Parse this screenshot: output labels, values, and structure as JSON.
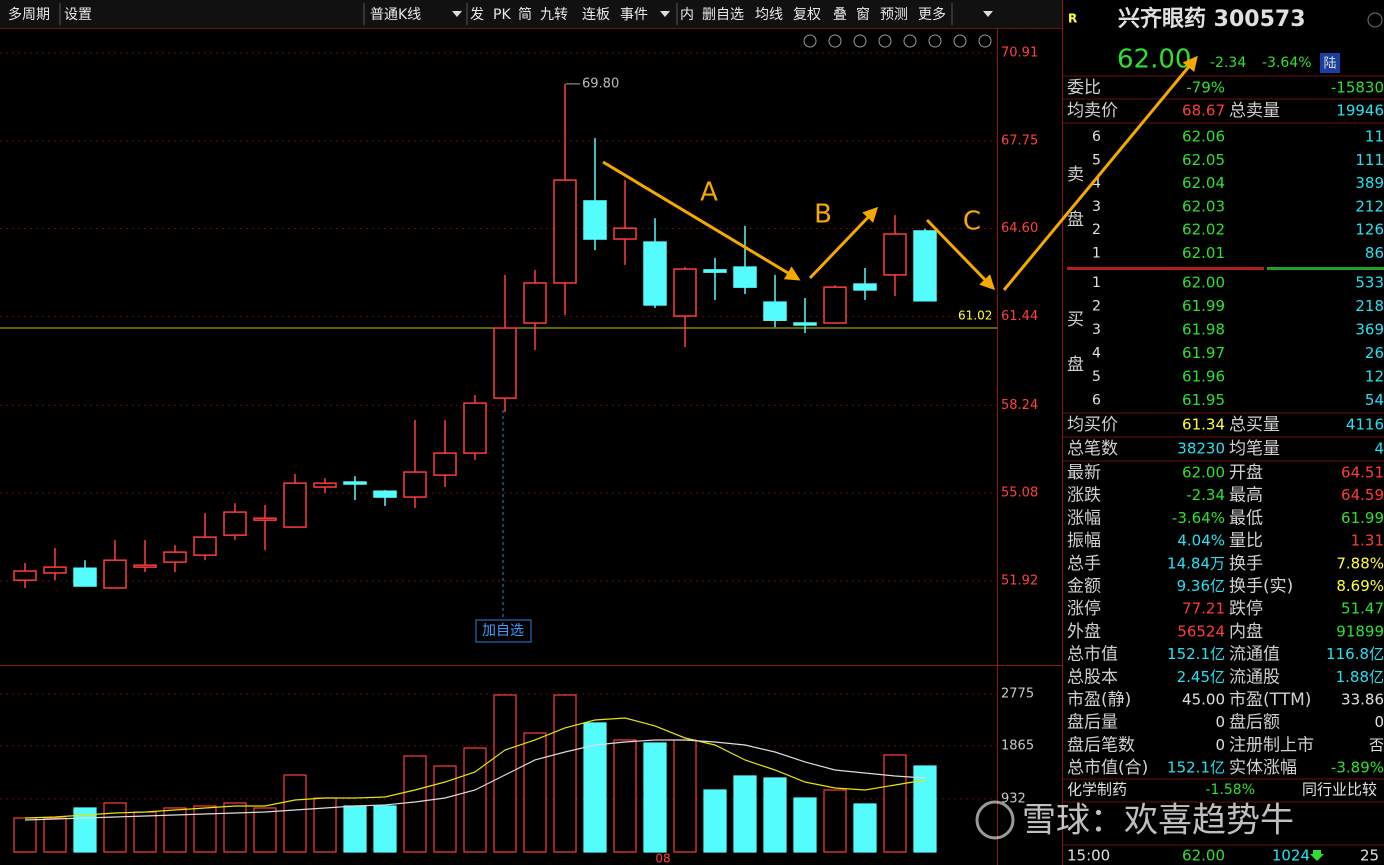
{
  "toolbar": [
    "多周期",
    "设置",
    "普通K线",
    "发",
    "PK",
    "简",
    "九转",
    "连板",
    "事件",
    "内",
    "删自选",
    "均线",
    "复权",
    "叠",
    "窗",
    "预测",
    "更多"
  ],
  "chart_data": {
    "type": "candlestick",
    "up_color": "#ff3c3c",
    "down_color": "#54fcfc",
    "open": [
      51.95,
      52.21,
      52.38,
      51.67,
      52.42,
      52.6,
      52.85,
      53.57,
      54.11,
      53.86,
      55.3,
      55.48,
      55.15,
      54.94,
      55.73,
      56.52,
      58.5,
      61.2,
      62.64,
      65.59,
      64.22,
      64.11,
      61.45,
      63.11,
      63.21,
      61.95,
      61.2,
      61.2,
      62.6,
      62.93,
      64.51
    ],
    "high": [
      52.57,
      53.11,
      52.67,
      53.39,
      53.39,
      53.21,
      54.36,
      54.72,
      54.65,
      55.77,
      55.62,
      55.69,
      55.19,
      57.71,
      57.71,
      58.61,
      62.93,
      63.11,
      69.8,
      67.85,
      66.34,
      64.97,
      63.21,
      63.54,
      64.69,
      62.93,
      62.1,
      62.56,
      63.18,
      65.08,
      64.59
    ],
    "low": [
      51.67,
      51.95,
      51.74,
      51.67,
      52.24,
      52.24,
      52.67,
      53.39,
      53.03,
      53.86,
      55.08,
      54.83,
      54.62,
      54.55,
      55.3,
      56.27,
      58.0,
      60.23,
      61.49,
      63.82,
      63.29,
      61.74,
      60.33,
      62.03,
      62.24,
      61.05,
      60.84,
      61.2,
      62.03,
      62.17,
      61.99
    ],
    "close": [
      52.28,
      52.42,
      51.74,
      52.67,
      52.49,
      52.96,
      53.5,
      54.4,
      54.18,
      55.44,
      55.44,
      55.41,
      54.94,
      55.84,
      56.52,
      58.32,
      61.02,
      62.64,
      66.34,
      64.22,
      64.61,
      61.85,
      63.14,
      63.03,
      62.49,
      61.3,
      61.13,
      62.49,
      62.39,
      64.4,
      62.0
    ],
    "ylim": [
      48.9,
      71.81
    ],
    "yticks": [
      70.91,
      67.75,
      {
        "value": 64.6,
        "label": "64.60"
      },
      61.44,
      58.24,
      55.08,
      51.92
    ],
    "reference_line": 61.02,
    "peak_label": {
      "value": 69.8,
      "label": "69.80"
    },
    "watch_button": "加自选",
    "x_label": "08",
    "annotations": [
      "A",
      "B",
      "C"
    ],
    "volume": {
      "values": [
        597,
        597,
        773,
        861,
        702,
        773,
        808,
        861,
        773,
        1352,
        948,
        808,
        808,
        1686,
        1510,
        1826,
        2757,
        2090,
        2757,
        2266,
        1967,
        1914,
        1967,
        1089,
        1335,
        1300,
        948,
        1089,
        843,
        1704,
        1510
      ],
      "ma_fast": {
        "color": "#e6e600",
        "values": [
          597,
          615,
          650,
          685,
          702,
          738,
          773,
          808,
          808,
          913,
          948,
          948,
          966,
          1089,
          1229,
          1405,
          1791,
          1967,
          2178,
          2318,
          2353,
          2213,
          2002,
          1879,
          1616,
          1440,
          1229,
          1124,
          1089,
          1177,
          1264
        ]
      },
      "ma_slow": {
        "color": "#dcdcdc",
        "values": [
          562,
          580,
          597,
          615,
          632,
          650,
          667,
          685,
          702,
          738,
          773,
          808,
          826,
          878,
          948,
          1089,
          1352,
          1616,
          1756,
          1879,
          1932,
          1967,
          1967,
          1932,
          1879,
          1756,
          1581,
          1440,
          1387,
          1335,
          1300
        ]
      },
      "ylim": [
        0,
        3196
      ],
      "yticks": [
        2775,
        1865,
        932
      ]
    }
  },
  "quote": {
    "badge": "R",
    "name": "兴齐眼药 300573",
    "price": "62.00",
    "change": "-2.34",
    "change_pct": "-3.64%",
    "market": "陆"
  },
  "order_book": {
    "ratio_label": "委比",
    "ratio": "-79%",
    "diff": "-15830",
    "avg_ask_label": "均卖价",
    "avg_ask": "68.67",
    "total_ask_label": "总卖量",
    "total_ask": "19946",
    "ask_title": [
      "卖",
      "盘"
    ],
    "asks": [
      [
        "6",
        "62.06",
        "11"
      ],
      [
        "5",
        "62.05",
        "111"
      ],
      [
        "4",
        "62.04",
        "389"
      ],
      [
        "3",
        "62.03",
        "212"
      ],
      [
        "2",
        "62.02",
        "126"
      ],
      [
        "1",
        "62.01",
        "86"
      ]
    ],
    "bid_title": [
      "买",
      "盘"
    ],
    "bids": [
      [
        "1",
        "62.00",
        "533"
      ],
      [
        "2",
        "61.99",
        "218"
      ],
      [
        "3",
        "61.98",
        "369"
      ],
      [
        "4",
        "61.97",
        "26"
      ],
      [
        "5",
        "61.96",
        "12"
      ],
      [
        "6",
        "61.95",
        "54"
      ]
    ],
    "avg_bid_label": "均买价",
    "avg_bid": "61.34",
    "total_bid_label": "总买量",
    "total_bid": "4116",
    "trades_label": "总笔数",
    "trades": "38230",
    "avg_trade_label": "均笔量",
    "avg_trade": "4"
  },
  "stats": [
    [
      "最新",
      "62.00",
      "g",
      "开盘",
      "64.51",
      "r"
    ],
    [
      "涨跌",
      "-2.34",
      "g",
      "最高",
      "64.59",
      "r"
    ],
    [
      "涨幅",
      "-3.64%",
      "g",
      "最低",
      "61.99",
      "g"
    ],
    [
      "振幅",
      "4.04%",
      "c",
      "量比",
      "1.31",
      "r"
    ],
    [
      "总手",
      "14.84万",
      "c",
      "换手",
      "7.88%",
      "y"
    ],
    [
      "金额",
      "9.36亿",
      "c",
      "换手(实)",
      "8.69%",
      "y"
    ],
    [
      "涨停",
      "77.21",
      "r",
      "跌停",
      "51.47",
      "g"
    ],
    [
      "外盘",
      "56524",
      "r",
      "内盘",
      "91899",
      "g"
    ],
    [
      "总市值",
      "152.1亿",
      "c",
      "流通值",
      "116.8亿",
      "c"
    ],
    [
      "总股本",
      "2.45亿",
      "c",
      "流通股",
      "1.88亿",
      "c"
    ],
    [
      "市盈(静)",
      "45.00",
      "w",
      "市盈(TTM)",
      "33.86",
      "w"
    ],
    [
      "盘后量",
      "0",
      "w",
      "盘后额",
      "0",
      "w"
    ],
    [
      "盘后笔数",
      "0",
      "w",
      "注册制上市",
      "否",
      "w"
    ],
    [
      "总市值(合)",
      "152.1亿",
      "c",
      "实体涨幅",
      "-3.89%",
      "g"
    ]
  ],
  "industry": {
    "name": "化学制药",
    "change": "-1.58%",
    "compare": "同行业比较"
  },
  "tick": {
    "time": "15:00",
    "price": "62.00",
    "volume": "1024",
    "count": "25"
  },
  "watermark": "雪球：欢喜趋势牛"
}
